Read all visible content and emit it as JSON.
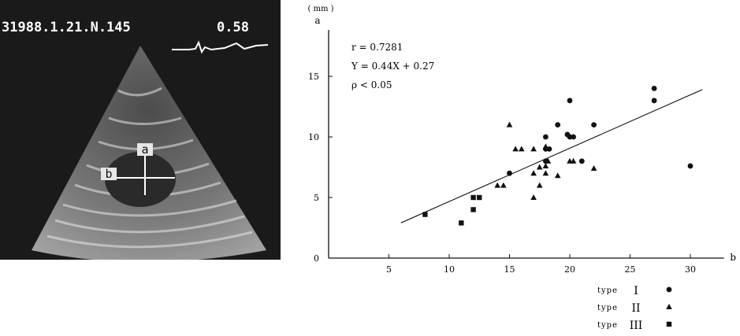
{
  "ultrasound": {
    "header_text": "31988.1.21.N.145",
    "value_text": "0.58",
    "label_a": "a",
    "label_b": "b",
    "bg_color": "#1a1a1a"
  },
  "chart_data": {
    "type": "scatter",
    "title": "",
    "xlabel": "b",
    "ylabel": "a",
    "x_unit_label": "( mm )",
    "y_unit_label": "( mm )",
    "xlim": [
      0,
      32
    ],
    "ylim": [
      0,
      16
    ],
    "x_ticks": [
      "5",
      "10",
      "15",
      "20",
      "25",
      "30"
    ],
    "y_ticks": [
      "0",
      "5",
      "10",
      "15"
    ],
    "grid": false,
    "annotations": [
      "r = 0.7281",
      "Y = 0.44X + 0.27",
      "ρ < 0.05"
    ],
    "regression": {
      "x_start": 6,
      "x_end": 31,
      "slope": 0.44,
      "intercept": 0.27
    },
    "legend_placement": "bottom-right",
    "series": [
      {
        "name": "type I",
        "legend_label": "type",
        "legend_numeral": "I",
        "marker": "circle",
        "points": [
          [
            18,
            10
          ],
          [
            18,
            9
          ],
          [
            18.3,
            9
          ],
          [
            19,
            11
          ],
          [
            20,
            13
          ],
          [
            20,
            10
          ],
          [
            20.3,
            10
          ],
          [
            19.8,
            10.2
          ],
          [
            22,
            11
          ],
          [
            27,
            14
          ],
          [
            27,
            13
          ],
          [
            30,
            7.6
          ],
          [
            21,
            8
          ],
          [
            18,
            8
          ],
          [
            15,
            7
          ]
        ]
      },
      {
        "name": "type II",
        "legend_label": "type",
        "legend_numeral": "II",
        "marker": "triangle",
        "points": [
          [
            15,
            11
          ],
          [
            15.5,
            9
          ],
          [
            16,
            9
          ],
          [
            17,
            9
          ],
          [
            18,
            9.2
          ],
          [
            17,
            7
          ],
          [
            17.5,
            7.5
          ],
          [
            18,
            7.6
          ],
          [
            18,
            7
          ],
          [
            17.5,
            6
          ],
          [
            17,
            5
          ],
          [
            14,
            6
          ],
          [
            14.5,
            6
          ],
          [
            19,
            6.8
          ],
          [
            18.2,
            8
          ],
          [
            20,
            8
          ],
          [
            20.3,
            8
          ],
          [
            22,
            7.4
          ]
        ]
      },
      {
        "name": "type III",
        "legend_label": "type",
        "legend_numeral": "III",
        "marker": "square",
        "points": [
          [
            8,
            3.6
          ],
          [
            11,
            2.9
          ],
          [
            12,
            5
          ],
          [
            12.5,
            5
          ],
          [
            12,
            4
          ]
        ]
      }
    ]
  }
}
